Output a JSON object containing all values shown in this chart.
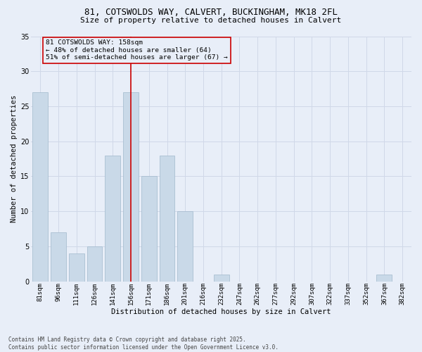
{
  "title1": "81, COTSWOLDS WAY, CALVERT, BUCKINGHAM, MK18 2FL",
  "title2": "Size of property relative to detached houses in Calvert",
  "xlabel": "Distribution of detached houses by size in Calvert",
  "ylabel": "Number of detached properties",
  "categories": [
    "81sqm",
    "96sqm",
    "111sqm",
    "126sqm",
    "141sqm",
    "156sqm",
    "171sqm",
    "186sqm",
    "201sqm",
    "216sqm",
    "232sqm",
    "247sqm",
    "262sqm",
    "277sqm",
    "292sqm",
    "307sqm",
    "322sqm",
    "337sqm",
    "352sqm",
    "367sqm",
    "382sqm"
  ],
  "values": [
    27,
    7,
    4,
    5,
    18,
    27,
    15,
    18,
    10,
    0,
    1,
    0,
    0,
    0,
    0,
    0,
    0,
    0,
    0,
    1,
    0
  ],
  "bar_color": "#c9d9e8",
  "bar_edge_color": "#a0b8cc",
  "grid_color": "#d0d8e8",
  "background_color": "#e8eef8",
  "annotation_line_color": "#cc0000",
  "annotation_box_edge_color": "#cc0000",
  "annotation_box_text": "81 COTSWOLDS WAY: 158sqm\n← 48% of detached houses are smaller (64)\n51% of semi-detached houses are larger (67) →",
  "ylim_min": 0,
  "ylim_max": 35,
  "yticks": [
    0,
    5,
    10,
    15,
    20,
    25,
    30,
    35
  ],
  "property_bin_index": 5,
  "footer_line1": "Contains HM Land Registry data © Crown copyright and database right 2025.",
  "footer_line2": "Contains public sector information licensed under the Open Government Licence v3.0.",
  "title1_fontsize": 9,
  "title2_fontsize": 8,
  "axis_label_fontsize": 7.5,
  "tick_fontsize": 6.5,
  "annotation_fontsize": 6.8,
  "footer_fontsize": 5.5
}
